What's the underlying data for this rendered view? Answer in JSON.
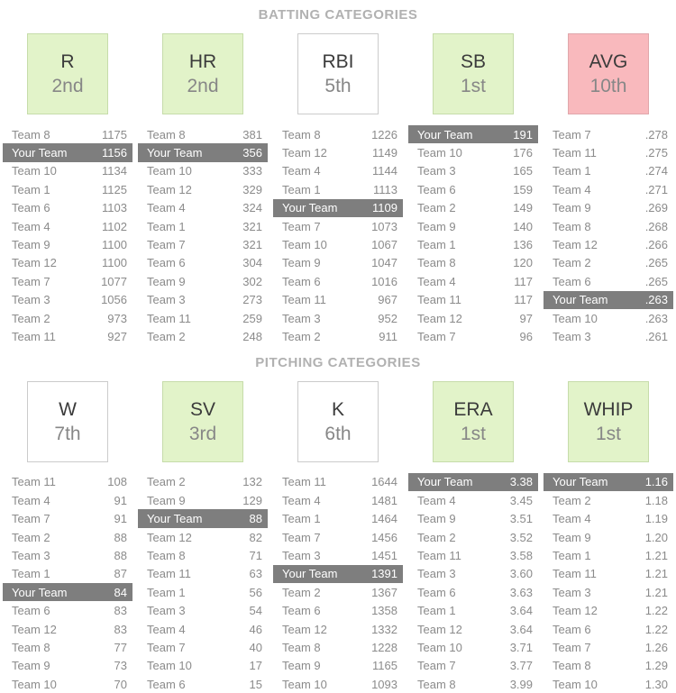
{
  "colors": {
    "good-bg": "#e2f3c9",
    "good-border": "#c6dcaa",
    "bad-bg": "#f9b9bd",
    "bad-border": "#e0a7ab",
    "neutral-bg": "#ffffff",
    "neutral-border": "#cbcbcb",
    "highlight-bg": "#7e7e7e",
    "highlight-text": "#ffffff",
    "row-text": "#8b8b8b",
    "title-text": "#b1b1b1"
  },
  "sections": [
    {
      "id": "batting",
      "title": "BATTING CATEGORIES",
      "categories": [
        {
          "label": "R",
          "rank": "2nd",
          "status": "good",
          "teams": [
            {
              "name": "Team 8",
              "value": "1175"
            },
            {
              "name": "Your Team",
              "value": "1156",
              "highlight": true
            },
            {
              "name": "Team 10",
              "value": "1134"
            },
            {
              "name": "Team 1",
              "value": "1125"
            },
            {
              "name": "Team 6",
              "value": "1103"
            },
            {
              "name": "Team 4",
              "value": "1102"
            },
            {
              "name": "Team 9",
              "value": "1100"
            },
            {
              "name": "Team 12",
              "value": "1100"
            },
            {
              "name": "Team 7",
              "value": "1077"
            },
            {
              "name": "Team 3",
              "value": "1056"
            },
            {
              "name": "Team 2",
              "value": "973"
            },
            {
              "name": "Team 11",
              "value": "927"
            }
          ]
        },
        {
          "label": "HR",
          "rank": "2nd",
          "status": "good",
          "teams": [
            {
              "name": "Team 8",
              "value": "381"
            },
            {
              "name": "Your Team",
              "value": "356",
              "highlight": true
            },
            {
              "name": "Team 10",
              "value": "333"
            },
            {
              "name": "Team 12",
              "value": "329"
            },
            {
              "name": "Team 4",
              "value": "324"
            },
            {
              "name": "Team 1",
              "value": "321"
            },
            {
              "name": "Team 7",
              "value": "321"
            },
            {
              "name": "Team 6",
              "value": "304"
            },
            {
              "name": "Team 9",
              "value": "302"
            },
            {
              "name": "Team 3",
              "value": "273"
            },
            {
              "name": "Team 11",
              "value": "259"
            },
            {
              "name": "Team 2",
              "value": "248"
            }
          ]
        },
        {
          "label": "RBI",
          "rank": "5th",
          "status": "neutral",
          "teams": [
            {
              "name": "Team 8",
              "value": "1226"
            },
            {
              "name": "Team 12",
              "value": "1149"
            },
            {
              "name": "Team 4",
              "value": "1144"
            },
            {
              "name": "Team 1",
              "value": "1113"
            },
            {
              "name": "Your Team",
              "value": "1109",
              "highlight": true
            },
            {
              "name": "Team 7",
              "value": "1073"
            },
            {
              "name": "Team 10",
              "value": "1067"
            },
            {
              "name": "Team 9",
              "value": "1047"
            },
            {
              "name": "Team 6",
              "value": "1016"
            },
            {
              "name": "Team 11",
              "value": "967"
            },
            {
              "name": "Team 3",
              "value": "952"
            },
            {
              "name": "Team 2",
              "value": "911"
            }
          ]
        },
        {
          "label": "SB",
          "rank": "1st",
          "status": "good",
          "teams": [
            {
              "name": "Your Team",
              "value": "191",
              "highlight": true
            },
            {
              "name": "Team 10",
              "value": "176"
            },
            {
              "name": "Team 3",
              "value": "165"
            },
            {
              "name": "Team 6",
              "value": "159"
            },
            {
              "name": "Team 2",
              "value": "149"
            },
            {
              "name": "Team 9",
              "value": "140"
            },
            {
              "name": "Team 1",
              "value": "136"
            },
            {
              "name": "Team 8",
              "value": "120"
            },
            {
              "name": "Team 4",
              "value": "117"
            },
            {
              "name": "Team 11",
              "value": "117"
            },
            {
              "name": "Team 12",
              "value": "97"
            },
            {
              "name": "Team 7",
              "value": "96"
            }
          ]
        },
        {
          "label": "AVG",
          "rank": "10th",
          "status": "bad",
          "teams": [
            {
              "name": "Team 7",
              "value": ".278"
            },
            {
              "name": "Team 11",
              "value": ".275"
            },
            {
              "name": "Team 1",
              "value": ".274"
            },
            {
              "name": "Team 4",
              "value": ".271"
            },
            {
              "name": "Team 9",
              "value": ".269"
            },
            {
              "name": "Team 8",
              "value": ".268"
            },
            {
              "name": "Team 12",
              "value": ".266"
            },
            {
              "name": "Team 2",
              "value": ".265"
            },
            {
              "name": "Team 6",
              "value": ".265"
            },
            {
              "name": "Your Team",
              "value": ".263",
              "highlight": true
            },
            {
              "name": "Team 10",
              "value": ".263"
            },
            {
              "name": "Team 3",
              "value": ".261"
            }
          ]
        }
      ]
    },
    {
      "id": "pitching",
      "title": "PITCHING CATEGORIES",
      "categories": [
        {
          "label": "W",
          "rank": "7th",
          "status": "neutral",
          "teams": [
            {
              "name": "Team 11",
              "value": "108"
            },
            {
              "name": "Team 4",
              "value": "91"
            },
            {
              "name": "Team 7",
              "value": "91"
            },
            {
              "name": "Team 2",
              "value": "88"
            },
            {
              "name": "Team 3",
              "value": "88"
            },
            {
              "name": "Team 1",
              "value": "87"
            },
            {
              "name": "Your Team",
              "value": "84",
              "highlight": true
            },
            {
              "name": "Team 6",
              "value": "83"
            },
            {
              "name": "Team 12",
              "value": "83"
            },
            {
              "name": "Team 8",
              "value": "77"
            },
            {
              "name": "Team 9",
              "value": "73"
            },
            {
              "name": "Team 10",
              "value": "70"
            }
          ]
        },
        {
          "label": "SV",
          "rank": "3rd",
          "status": "good",
          "teams": [
            {
              "name": "Team 2",
              "value": "132"
            },
            {
              "name": "Team 9",
              "value": "129"
            },
            {
              "name": "Your Team",
              "value": "88",
              "highlight": true
            },
            {
              "name": "Team 12",
              "value": "82"
            },
            {
              "name": "Team 8",
              "value": "71"
            },
            {
              "name": "Team 11",
              "value": "63"
            },
            {
              "name": "Team 1",
              "value": "56"
            },
            {
              "name": "Team 3",
              "value": "54"
            },
            {
              "name": "Team 4",
              "value": "46"
            },
            {
              "name": "Team 7",
              "value": "40"
            },
            {
              "name": "Team 10",
              "value": "17"
            },
            {
              "name": "Team 6",
              "value": "15"
            }
          ]
        },
        {
          "label": "K",
          "rank": "6th",
          "status": "neutral",
          "teams": [
            {
              "name": "Team 11",
              "value": "1644"
            },
            {
              "name": "Team 4",
              "value": "1481"
            },
            {
              "name": "Team 1",
              "value": "1464"
            },
            {
              "name": "Team 7",
              "value": "1456"
            },
            {
              "name": "Team 3",
              "value": "1451"
            },
            {
              "name": "Your Team",
              "value": "1391",
              "highlight": true
            },
            {
              "name": "Team 2",
              "value": "1367"
            },
            {
              "name": "Team 6",
              "value": "1358"
            },
            {
              "name": "Team 12",
              "value": "1332"
            },
            {
              "name": "Team 8",
              "value": "1228"
            },
            {
              "name": "Team 9",
              "value": "1165"
            },
            {
              "name": "Team 10",
              "value": "1093"
            }
          ]
        },
        {
          "label": "ERA",
          "rank": "1st",
          "status": "good",
          "teams": [
            {
              "name": "Your Team",
              "value": "3.38",
              "highlight": true
            },
            {
              "name": "Team 4",
              "value": "3.45"
            },
            {
              "name": "Team 9",
              "value": "3.51"
            },
            {
              "name": "Team 2",
              "value": "3.52"
            },
            {
              "name": "Team 11",
              "value": "3.58"
            },
            {
              "name": "Team 3",
              "value": "3.60"
            },
            {
              "name": "Team 6",
              "value": "3.63"
            },
            {
              "name": "Team 1",
              "value": "3.64"
            },
            {
              "name": "Team 12",
              "value": "3.64"
            },
            {
              "name": "Team 10",
              "value": "3.71"
            },
            {
              "name": "Team 7",
              "value": "3.77"
            },
            {
              "name": "Team 8",
              "value": "3.99"
            }
          ]
        },
        {
          "label": "WHIP",
          "rank": "1st",
          "status": "good",
          "teams": [
            {
              "name": "Your Team",
              "value": "1.16",
              "highlight": true
            },
            {
              "name": "Team 2",
              "value": "1.18"
            },
            {
              "name": "Team 4",
              "value": "1.19"
            },
            {
              "name": "Team 9",
              "value": "1.20"
            },
            {
              "name": "Team 1",
              "value": "1.21"
            },
            {
              "name": "Team 11",
              "value": "1.21"
            },
            {
              "name": "Team 3",
              "value": "1.21"
            },
            {
              "name": "Team 12",
              "value": "1.22"
            },
            {
              "name": "Team 6",
              "value": "1.22"
            },
            {
              "name": "Team 7",
              "value": "1.26"
            },
            {
              "name": "Team 8",
              "value": "1.29"
            },
            {
              "name": "Team 10",
              "value": "1.30"
            }
          ]
        }
      ]
    }
  ]
}
